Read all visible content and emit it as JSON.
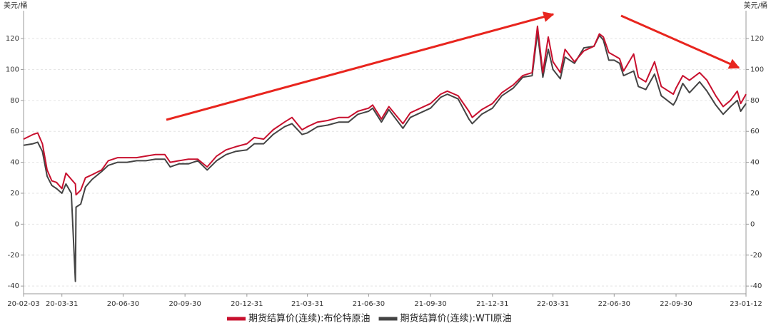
{
  "chart_data": {
    "type": "line",
    "y_label": "美元/桶",
    "y2_label": "美元/桶",
    "x": [
      "20-02-03",
      "20-02-17",
      "20-02-24",
      "20-03-02",
      "20-03-09",
      "20-03-16",
      "20-03-23",
      "20-03-31",
      "20-04-06",
      "20-04-14",
      "20-04-20",
      "20-04-21",
      "20-04-28",
      "20-05-05",
      "20-05-15",
      "20-05-29",
      "20-06-08",
      "20-06-22",
      "20-07-06",
      "20-07-20",
      "20-08-03",
      "20-08-17",
      "20-08-31",
      "20-09-08",
      "20-09-21",
      "20-10-05",
      "20-10-19",
      "20-11-02",
      "20-11-16",
      "20-11-30",
      "20-12-14",
      "20-12-31",
      "21-01-11",
      "21-01-25",
      "21-02-08",
      "21-02-25",
      "21-03-08",
      "21-03-23",
      "21-03-31",
      "21-04-15",
      "21-04-30",
      "21-05-17",
      "21-05-31",
      "21-06-14",
      "21-06-30",
      "21-07-06",
      "21-07-19",
      "21-07-30",
      "21-08-20",
      "21-08-31",
      "21-09-15",
      "21-09-30",
      "21-10-15",
      "21-10-25",
      "21-11-10",
      "21-11-26",
      "21-12-01",
      "21-12-15",
      "21-12-31",
      "22-01-14",
      "22-01-31",
      "22-02-14",
      "22-02-28",
      "22-03-08",
      "22-03-16",
      "22-03-24",
      "22-03-31",
      "22-04-11",
      "22-04-18",
      "22-05-02",
      "22-05-16",
      "22-05-31",
      "22-06-08",
      "22-06-14",
      "22-06-22",
      "22-06-30",
      "22-07-08",
      "22-07-14",
      "22-07-29",
      "22-08-05",
      "22-08-16",
      "22-08-29",
      "22-09-08",
      "22-09-26",
      "22-09-30",
      "22-10-10",
      "22-10-20",
      "22-11-04",
      "22-11-15",
      "22-11-28",
      "22-12-09",
      "22-12-20",
      "22-12-30",
      "23-01-04",
      "23-01-12"
    ],
    "series": [
      {
        "name": "期货结算价(连续):布伦特原油",
        "color": "#c8102e",
        "values": [
          55,
          58,
          59,
          52,
          35,
          28,
          27,
          23,
          33,
          29,
          26,
          19,
          22,
          30,
          32,
          35,
          41,
          43,
          43,
          43,
          44,
          45,
          45,
          40,
          41,
          42,
          42,
          37,
          44,
          48,
          50,
          52,
          56,
          55,
          61,
          66,
          69,
          61,
          63,
          66,
          67,
          69,
          69,
          73,
          75,
          77,
          68,
          76,
          65,
          72,
          75,
          78,
          84,
          86,
          83,
          73,
          69,
          74,
          78,
          85,
          90,
          96,
          98,
          128,
          98,
          121,
          105,
          98,
          113,
          105,
          112,
          115,
          123,
          121,
          111,
          109,
          107,
          99,
          110,
          95,
          92,
          105,
          89,
          84,
          88,
          96,
          93,
          98,
          93,
          83,
          76,
          80,
          86,
          78,
          84
        ]
      },
      {
        "name": "期货结算价(连续):WTI原油",
        "color": "#444444",
        "values": [
          51,
          52,
          53,
          47,
          31,
          25,
          23,
          20,
          26,
          20,
          -37,
          11,
          13,
          24,
          29,
          34,
          38,
          40,
          40,
          41,
          41,
          42,
          42,
          37,
          39,
          39,
          41,
          35,
          41,
          45,
          47,
          48,
          52,
          52,
          58,
          63,
          65,
          58,
          59,
          63,
          64,
          66,
          66,
          71,
          73,
          75,
          66,
          74,
          62,
          69,
          72,
          75,
          82,
          84,
          81,
          68,
          65,
          71,
          75,
          83,
          88,
          95,
          96,
          124,
          95,
          113,
          100,
          94,
          108,
          104,
          114,
          115,
          122,
          119,
          106,
          106,
          104,
          96,
          99,
          89,
          87,
          97,
          83,
          77,
          80,
          91,
          85,
          92,
          86,
          77,
          71,
          76,
          80,
          73,
          78
        ]
      }
    ],
    "xlim": [
      "20-02-03",
      "23-01-12"
    ],
    "xticks": [
      "20-02-03",
      "20-03-31",
      "20-06-30",
      "20-09-30",
      "20-12-31",
      "21-03-31",
      "21-06-30",
      "21-09-30",
      "21-12-31",
      "22-03-31",
      "22-06-30",
      "22-09-30",
      "23-01-12"
    ],
    "ylim": [
      -45,
      138
    ],
    "yticks": [
      -40,
      -20,
      0,
      20,
      40,
      60,
      80,
      100,
      120
    ],
    "y2lim": [
      -45,
      138
    ],
    "y2ticks": [
      -40,
      -20,
      0,
      20,
      40,
      60,
      80,
      100,
      120
    ],
    "grid": true
  }
}
